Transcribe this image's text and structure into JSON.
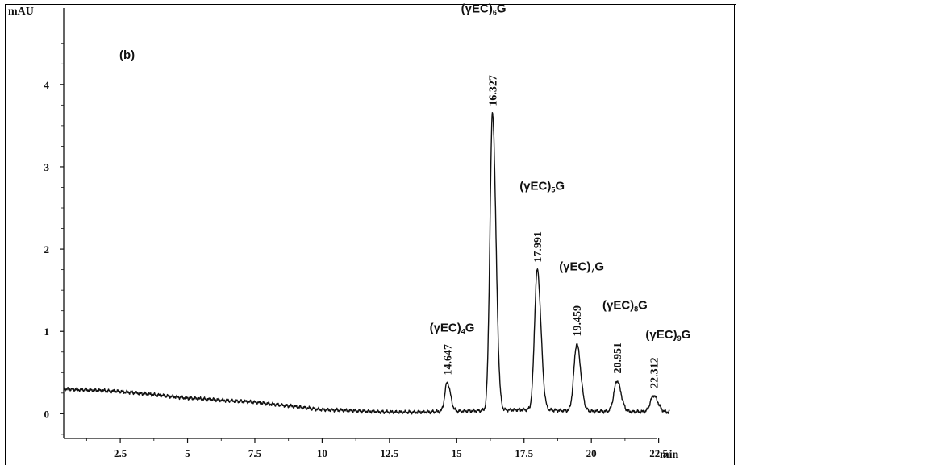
{
  "chart_data": {
    "type": "line",
    "panel_label": "(b)",
    "ylabel": "mAU",
    "xlabel": "min",
    "xlim": [
      0.4,
      23.5
    ],
    "ylim": [
      -0.3,
      4.85
    ],
    "x_ticks": [
      {
        "value": 2.5,
        "label": "2.5"
      },
      {
        "value": 5,
        "label": "5"
      },
      {
        "value": 7.5,
        "label": "7.5"
      },
      {
        "value": 10,
        "label": "10"
      },
      {
        "value": 12.5,
        "label": "12.5"
      },
      {
        "value": 15,
        "label": "15"
      },
      {
        "value": 17.5,
        "label": "17.5"
      },
      {
        "value": 20,
        "label": "20"
      },
      {
        "value": 22.5,
        "label": "22.5"
      }
    ],
    "y_ticks": [
      {
        "value": 0,
        "label": "0"
      },
      {
        "value": 1,
        "label": "1"
      },
      {
        "value": 2,
        "label": "2"
      },
      {
        "value": 3,
        "label": "3"
      },
      {
        "value": 4,
        "label": "4"
      }
    ],
    "series": [
      {
        "x_range": [
          0.4,
          22.9
        ],
        "baseline": [
          [
            0.4,
            0.3
          ],
          [
            2.5,
            0.27
          ],
          [
            5,
            0.19
          ],
          [
            7.5,
            0.14
          ],
          [
            10,
            0.05
          ],
          [
            12.5,
            0.02
          ],
          [
            13.5,
            0.02
          ],
          [
            15,
            0.03
          ],
          [
            17.5,
            0.05
          ],
          [
            20,
            0.03
          ],
          [
            22.9,
            0.02
          ]
        ],
        "peaks": [
          {
            "rt": 14.647,
            "height": 0.38
          },
          {
            "rt": 16.327,
            "height": 3.65
          },
          {
            "rt": 17.991,
            "height": 1.75
          },
          {
            "rt": 19.459,
            "height": 0.85
          },
          {
            "rt": 20.951,
            "height": 0.4
          },
          {
            "rt": 22.312,
            "height": 0.22
          }
        ]
      }
    ],
    "peak_labels": [
      {
        "rt_label": "14.647",
        "name_main": "(γEC)",
        "name_sub": "4",
        "name_tail": "G"
      },
      {
        "rt_label": "16.327",
        "name_main": "(γEC)",
        "name_sub": "6",
        "name_tail": "G"
      },
      {
        "rt_label": "17.991",
        "name_main": "(γEC)",
        "name_sub": "5",
        "name_tail": "G"
      },
      {
        "rt_label": "19.459",
        "name_main": "(γEC)",
        "name_sub": "7",
        "name_tail": "G"
      },
      {
        "rt_label": "20.951",
        "name_main": "(γEC)",
        "name_sub": "8",
        "name_tail": "G"
      },
      {
        "rt_label": "22.312",
        "name_main": "(γEC)",
        "name_sub": "9",
        "name_tail": "G"
      }
    ]
  }
}
